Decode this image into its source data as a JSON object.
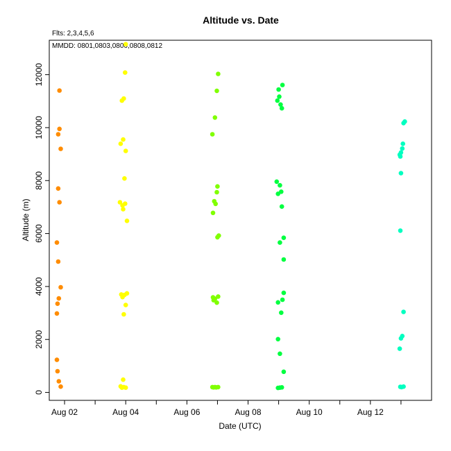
{
  "chart_data": {
    "type": "scatter",
    "title": "Altitude  vs. Date",
    "subtitle_flights": "Flts: 2,3,4,5,6",
    "annotation": "MMDD: 0801,0803,0806,0808,0812",
    "xlabel": "Date (UTC)",
    "ylabel": "Altitude (m)",
    "x_ticks": [
      {
        "x": "2017-08-02",
        "label": "Aug 02"
      },
      {
        "x": "2017-08-04",
        "label": "Aug 04"
      },
      {
        "x": "2017-08-06",
        "label": "Aug 06"
      },
      {
        "x": "2017-08-08",
        "label": "Aug 08"
      },
      {
        "x": "2017-08-10",
        "label": "Aug 10"
      },
      {
        "x": "2017-08-12",
        "label": "Aug 12"
      }
    ],
    "x_minor_ticks": [
      "2017-08-03",
      "2017-08-05",
      "2017-08-07",
      "2017-08-09",
      "2017-08-11",
      "2017-08-13"
    ],
    "xlim": [
      "2017-08-01 12:00",
      "2017-08-14 00:00"
    ],
    "ylim": [
      -300,
      13300
    ],
    "y_ticks": [
      0,
      2000,
      4000,
      6000,
      8000,
      10000,
      12000
    ],
    "grid": false,
    "series": [
      {
        "color": "#ff8c00",
        "points": [
          {
            "x": "2017-08-01 20:00",
            "y": 11400
          },
          {
            "x": "2017-08-01 20:00",
            "y": 9950
          },
          {
            "x": "2017-08-01 19:00",
            "y": 9750
          },
          {
            "x": "2017-08-01 21:00",
            "y": 9200
          },
          {
            "x": "2017-08-01 19:00",
            "y": 7700
          },
          {
            "x": "2017-08-01 20:00",
            "y": 7180
          },
          {
            "x": "2017-08-01 18:00",
            "y": 5660
          },
          {
            "x": "2017-08-01 19:00",
            "y": 4940
          },
          {
            "x": "2017-08-01 21:00",
            "y": 3970
          },
          {
            "x": "2017-08-01 19:30",
            "y": 3550
          },
          {
            "x": "2017-08-01 18:30",
            "y": 3350
          },
          {
            "x": "2017-08-01 18:00",
            "y": 2980
          },
          {
            "x": "2017-08-01 18:00",
            "y": 1230
          },
          {
            "x": "2017-08-01 18:30",
            "y": 800
          },
          {
            "x": "2017-08-01 19:30",
            "y": 420
          },
          {
            "x": "2017-08-01 21:00",
            "y": 220
          }
        ]
      },
      {
        "color": "#ffff00",
        "points": [
          {
            "x": "2017-08-04 00:00",
            "y": 13150
          },
          {
            "x": "2017-08-03 23:30",
            "y": 12080
          },
          {
            "x": "2017-08-03 22:30",
            "y": 11100
          },
          {
            "x": "2017-08-03 21:00",
            "y": 11020
          },
          {
            "x": "2017-08-03 22:00",
            "y": 9550
          },
          {
            "x": "2017-08-03 20:00",
            "y": 9390
          },
          {
            "x": "2017-08-04 00:00",
            "y": 9120
          },
          {
            "x": "2017-08-03 23:00",
            "y": 8080
          },
          {
            "x": "2017-08-03 19:30",
            "y": 7180
          },
          {
            "x": "2017-08-03 21:30",
            "y": 7060
          },
          {
            "x": "2017-08-03 23:30",
            "y": 7130
          },
          {
            "x": "2017-08-03 22:00",
            "y": 6920
          },
          {
            "x": "2017-08-04 01:00",
            "y": 6480
          },
          {
            "x": "2017-08-03 20:30",
            "y": 3700
          },
          {
            "x": "2017-08-03 21:30",
            "y": 3600
          },
          {
            "x": "2017-08-03 23:00",
            "y": 3680
          },
          {
            "x": "2017-08-04 01:00",
            "y": 3740
          },
          {
            "x": "2017-08-04 00:00",
            "y": 3300
          },
          {
            "x": "2017-08-03 22:30",
            "y": 2950
          },
          {
            "x": "2017-08-03 22:00",
            "y": 480
          },
          {
            "x": "2017-08-03 20:00",
            "y": 230
          },
          {
            "x": "2017-08-03 21:00",
            "y": 180
          },
          {
            "x": "2017-08-03 22:30",
            "y": 200
          },
          {
            "x": "2017-08-04 00:00",
            "y": 180
          }
        ]
      },
      {
        "color": "#80ff00",
        "points": [
          {
            "x": "2017-08-07 00:30",
            "y": 12030
          },
          {
            "x": "2017-08-06 23:30",
            "y": 11390
          },
          {
            "x": "2017-08-06 22:00",
            "y": 10380
          },
          {
            "x": "2017-08-06 20:00",
            "y": 9750
          },
          {
            "x": "2017-08-07 00:00",
            "y": 7780
          },
          {
            "x": "2017-08-06 23:30",
            "y": 7560
          },
          {
            "x": "2017-08-06 21:30",
            "y": 7220
          },
          {
            "x": "2017-08-06 22:30",
            "y": 7120
          },
          {
            "x": "2017-08-06 20:30",
            "y": 6780
          },
          {
            "x": "2017-08-07 01:00",
            "y": 5920
          },
          {
            "x": "2017-08-07 00:00",
            "y": 5860
          },
          {
            "x": "2017-08-06 20:30",
            "y": 3590
          },
          {
            "x": "2017-08-06 22:00",
            "y": 3540
          },
          {
            "x": "2017-08-07 00:30",
            "y": 3620
          },
          {
            "x": "2017-08-06 21:00",
            "y": 3480
          },
          {
            "x": "2017-08-06 23:30",
            "y": 3390
          },
          {
            "x": "2017-08-06 20:00",
            "y": 200
          },
          {
            "x": "2017-08-06 21:00",
            "y": 190
          },
          {
            "x": "2017-08-06 22:00",
            "y": 200
          },
          {
            "x": "2017-08-06 23:00",
            "y": 190
          },
          {
            "x": "2017-08-07 00:30",
            "y": 200
          }
        ]
      },
      {
        "color": "#00ff40",
        "points": [
          {
            "x": "2017-08-09 03:00",
            "y": 11610
          },
          {
            "x": "2017-08-09 00:00",
            "y": 11440
          },
          {
            "x": "2017-08-09 00:30",
            "y": 11170
          },
          {
            "x": "2017-08-08 23:00",
            "y": 11020
          },
          {
            "x": "2017-08-09 01:30",
            "y": 10870
          },
          {
            "x": "2017-08-09 02:30",
            "y": 10730
          },
          {
            "x": "2017-08-08 22:30",
            "y": 7960
          },
          {
            "x": "2017-08-09 01:00",
            "y": 7820
          },
          {
            "x": "2017-08-09 02:00",
            "y": 7580
          },
          {
            "x": "2017-08-08 23:30",
            "y": 7500
          },
          {
            "x": "2017-08-09 02:30",
            "y": 7020
          },
          {
            "x": "2017-08-09 04:00",
            "y": 5840
          },
          {
            "x": "2017-08-09 01:00",
            "y": 5660
          },
          {
            "x": "2017-08-09 04:00",
            "y": 5020
          },
          {
            "x": "2017-08-09 04:00",
            "y": 3760
          },
          {
            "x": "2017-08-09 03:00",
            "y": 3500
          },
          {
            "x": "2017-08-08 23:30",
            "y": 3400
          },
          {
            "x": "2017-08-09 02:00",
            "y": 3010
          },
          {
            "x": "2017-08-08 23:30",
            "y": 2010
          },
          {
            "x": "2017-08-09 01:00",
            "y": 1460
          },
          {
            "x": "2017-08-09 04:00",
            "y": 780
          },
          {
            "x": "2017-08-08 23:30",
            "y": 170
          },
          {
            "x": "2017-08-09 01:00",
            "y": 180
          },
          {
            "x": "2017-08-09 02:30",
            "y": 190
          }
        ]
      },
      {
        "color": "#00ffc0",
        "points": [
          {
            "x": "2017-08-13 03:00",
            "y": 10230
          },
          {
            "x": "2017-08-13 02:00",
            "y": 10170
          },
          {
            "x": "2017-08-13 01:30",
            "y": 9390
          },
          {
            "x": "2017-08-13 01:00",
            "y": 9210
          },
          {
            "x": "2017-08-13 00:00",
            "y": 9060
          },
          {
            "x": "2017-08-12 23:00",
            "y": 8980
          },
          {
            "x": "2017-08-12 23:30",
            "y": 8910
          },
          {
            "x": "2017-08-13 00:00",
            "y": 8280
          },
          {
            "x": "2017-08-12 23:30",
            "y": 6110
          },
          {
            "x": "2017-08-13 02:00",
            "y": 3040
          },
          {
            "x": "2017-08-13 01:00",
            "y": 2130
          },
          {
            "x": "2017-08-13 00:00",
            "y": 2040
          },
          {
            "x": "2017-08-12 23:00",
            "y": 1650
          },
          {
            "x": "2017-08-12 23:30",
            "y": 210
          },
          {
            "x": "2017-08-13 00:30",
            "y": 200
          },
          {
            "x": "2017-08-13 02:00",
            "y": 220
          }
        ]
      }
    ]
  }
}
